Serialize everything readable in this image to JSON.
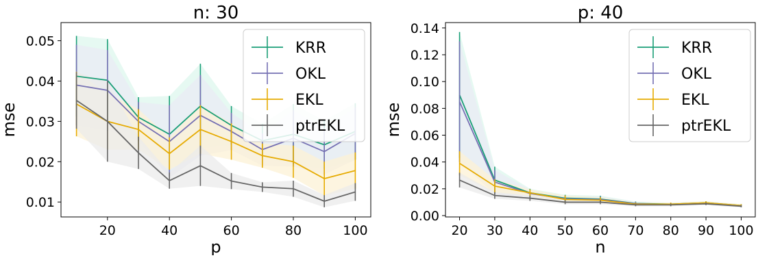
{
  "chart_data": [
    {
      "type": "line",
      "title": "n: 30",
      "xlabel": "p",
      "ylabel": "mse",
      "x": [
        10,
        20,
        30,
        40,
        50,
        60,
        70,
        80,
        90,
        100
      ],
      "xticks": [
        20,
        40,
        60,
        80,
        100
      ],
      "yticks": [
        0.01,
        0.02,
        0.03,
        0.04,
        0.05
      ],
      "xlim": [
        5,
        105
      ],
      "ylim": [
        0.0063,
        0.0545
      ],
      "legend_position": "upper right",
      "series": [
        {
          "name": "KRR",
          "color": "#1a9e77",
          "fill": "#def7ee",
          "values": [
            0.0412,
            0.0402,
            0.031,
            0.0268,
            0.0338,
            0.029,
            0.0252,
            0.0268,
            0.0242,
            0.0275
          ],
          "errors": [
            0.01,
            0.0102,
            0.005,
            0.0095,
            0.0105,
            0.0048,
            0.0042,
            0.0075,
            0.006,
            0.007
          ]
        },
        {
          "name": "OKL",
          "color": "#7570b3",
          "fill": "#e9ebf4",
          "values": [
            0.039,
            0.0377,
            0.03,
            0.025,
            0.0315,
            0.0275,
            0.023,
            0.0258,
            0.0225,
            0.027
          ],
          "errors": [
            0.01,
            0.01,
            0.0048,
            0.009,
            0.01,
            0.0046,
            0.004,
            0.007,
            0.0057,
            0.0065
          ]
        },
        {
          "name": "EKL",
          "color": "#e6ab02",
          "fill": "#fcf2d6",
          "values": [
            0.0343,
            0.03,
            0.028,
            0.022,
            0.028,
            0.025,
            0.0215,
            0.02,
            0.0158,
            0.0178
          ],
          "errors": [
            0.008,
            0.007,
            0.005,
            0.004,
            0.006,
            0.0045,
            0.003,
            0.004,
            0.0042,
            0.0045
          ]
        },
        {
          "name": "ptrEKL",
          "color": "#666666",
          "fill": "#ebebeb",
          "values": [
            0.0352,
            0.03,
            0.0222,
            0.0153,
            0.019,
            0.0152,
            0.0137,
            0.0133,
            0.0102,
            0.0125
          ],
          "errors": [
            0.007,
            0.01,
            0.004,
            0.002,
            0.005,
            0.002,
            0.0012,
            0.002,
            0.0015,
            0.0022
          ]
        }
      ]
    },
    {
      "type": "line",
      "title": "p: 40",
      "xlabel": "n",
      "ylabel": "mse",
      "x": [
        20,
        30,
        40,
        50,
        60,
        70,
        80,
        90,
        100
      ],
      "xticks": [
        20,
        30,
        40,
        50,
        60,
        70,
        80,
        90,
        100
      ],
      "yticks": [
        0.0,
        0.02,
        0.04,
        0.06,
        0.08,
        0.1,
        0.12,
        0.14
      ],
      "ytick_labels": [
        "0.00",
        "0.02",
        "0.04",
        "0.06",
        "0.08",
        "0.10",
        "0.12",
        "0.14"
      ],
      "xlim": [
        16,
        104
      ],
      "ylim": [
        -0.001,
        0.144
      ],
      "legend_position": "upper right",
      "series": [
        {
          "name": "KRR",
          "color": "#1a9e77",
          "fill": "#def7ee",
          "values": [
            0.09,
            0.0265,
            0.017,
            0.013,
            0.0123,
            0.009,
            0.0085,
            0.0095,
            0.0075
          ],
          "errors": [
            0.047,
            0.01,
            0.003,
            0.0025,
            0.0025,
            0.0015,
            0.0012,
            0.0012,
            0.001
          ]
        },
        {
          "name": "OKL",
          "color": "#7570b3",
          "fill": "#e9ebf4",
          "values": [
            0.085,
            0.025,
            0.0165,
            0.0125,
            0.012,
            0.0088,
            0.0083,
            0.0092,
            0.0073
          ],
          "errors": [
            0.045,
            0.009,
            0.0028,
            0.0022,
            0.0022,
            0.0014,
            0.0011,
            0.0011,
            0.001
          ]
        },
        {
          "name": "EKL",
          "color": "#e6ab02",
          "fill": "#fcf2d6",
          "values": [
            0.039,
            0.022,
            0.017,
            0.012,
            0.0115,
            0.0085,
            0.0085,
            0.0095,
            0.0075
          ],
          "errors": [
            0.009,
            0.005,
            0.0025,
            0.003,
            0.0022,
            0.0012,
            0.0012,
            0.0012,
            0.001
          ]
        },
        {
          "name": "ptrEKL",
          "color": "#666666",
          "fill": "#ebebeb",
          "values": [
            0.0265,
            0.015,
            0.013,
            0.01,
            0.01,
            0.008,
            0.008,
            0.0088,
            0.007
          ],
          "errors": [
            0.0055,
            0.0025,
            0.002,
            0.0015,
            0.0015,
            0.001,
            0.001,
            0.001,
            0.0008
          ]
        }
      ]
    }
  ]
}
